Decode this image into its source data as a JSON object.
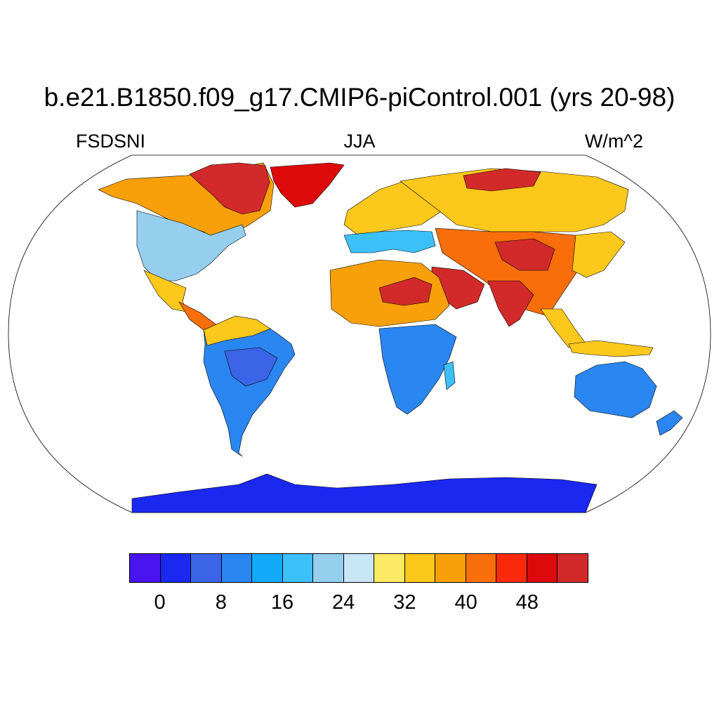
{
  "header": {
    "title": "b.e21.B1850.f09_g17.CMIP6-piControl.001 (yrs 20-98)",
    "variable": "FSDSNI",
    "season": "JJA",
    "units": "W/m^2"
  },
  "map": {
    "projection": "Robinson",
    "ocean_color": "#ffffff",
    "coastline_color": "#000000"
  },
  "colorbar": {
    "colors": [
      "#4a14f0",
      "#1a28f0",
      "#3c64e6",
      "#2a86f0",
      "#14aafa",
      "#3cc0f8",
      "#96cfee",
      "#c8e6f6",
      "#fcea64",
      "#fcc81c",
      "#f8a00a",
      "#f86e0a",
      "#f82a0a",
      "#dc0a0a",
      "#d22a2a"
    ],
    "tick_labels": [
      "0",
      "8",
      "16",
      "24",
      "32",
      "40",
      "48"
    ],
    "tick_boundary_index": [
      1,
      3,
      5,
      7,
      9,
      11,
      13
    ]
  }
}
